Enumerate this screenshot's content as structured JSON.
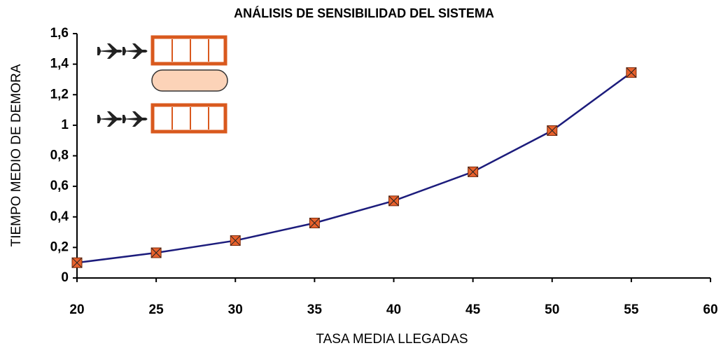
{
  "chart_data": {
    "type": "line",
    "title": "ANÁLISIS DE SENSIBILIDAD DEL SISTEMA",
    "x_label": "TASA MEDIA LLEGADAS",
    "y_label": "TIEMPO MEDIO DE DEMORA",
    "x": [
      20,
      25,
      30,
      35,
      40,
      45,
      50,
      55
    ],
    "series": [
      {
        "color": "#1c1c7c",
        "marker_color": "#e8612c",
        "values": [
          0.1,
          0.165,
          0.245,
          0.36,
          0.505,
          0.695,
          0.965,
          1.345
        ]
      }
    ],
    "xlim": [
      20,
      60
    ],
    "xticks": [
      20,
      25,
      30,
      35,
      40,
      45,
      50,
      55,
      60
    ],
    "ylim": [
      0,
      1.6
    ],
    "yticks": [
      0,
      {
        "value": 0.2,
        "label": "0,2"
      },
      {
        "value": 0.4,
        "label": "0,4"
      },
      {
        "value": 0.6,
        "label": "0,6"
      },
      {
        "value": 0.8,
        "label": "0,8"
      },
      1,
      {
        "value": 1.2,
        "label": "1,2"
      },
      {
        "value": 1.4,
        "label": "1,4"
      },
      {
        "value": 1.6,
        "label": "1,6"
      }
    ],
    "grid": false
  }
}
